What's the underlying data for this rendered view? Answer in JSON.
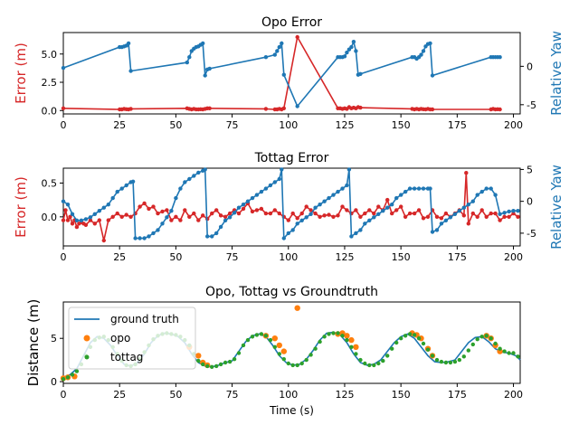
{
  "colors": {
    "error": "#d62728",
    "yaw": "#1f77b4",
    "ground": "#1f77b4",
    "opo": "#ff7f0e",
    "tottag": "#2ca02c"
  },
  "chart_data": [
    {
      "type": "line",
      "title": "Opo Error",
      "xlabel": "",
      "ylabel": "Error (m)",
      "ylabel_right": "Relative Yaw",
      "xlim": [
        0,
        203
      ],
      "ylim": [
        -0.3,
        6.9
      ],
      "ylim_right": [
        -6.2,
        4.4
      ],
      "xticks": [
        0,
        25,
        50,
        75,
        100,
        125,
        150,
        175,
        200
      ],
      "yticks": [
        0.0,
        2.5,
        5.0
      ],
      "ytick_labels": [
        "0.0",
        "2.5",
        "5.0"
      ],
      "yticks_right": [
        -5,
        0
      ],
      "ytick_labels_right": [
        "-5",
        "0"
      ],
      "series": [
        {
          "axis": "left",
          "color": "error",
          "x": [
            0,
            25,
            26,
            27,
            28,
            29,
            30,
            55,
            56,
            57,
            58,
            59,
            60,
            61,
            62,
            63,
            64,
            65,
            90,
            94,
            95,
            96,
            97,
            98,
            104,
            122,
            123,
            124,
            125,
            126,
            127,
            128,
            129,
            130,
            131,
            132,
            155,
            156,
            157,
            158,
            159,
            160,
            161,
            162,
            163,
            164,
            190,
            191,
            192,
            193,
            194
          ],
          "y": [
            0.2,
            0.1,
            0.1,
            0.15,
            0.12,
            0.1,
            0.15,
            0.2,
            0.15,
            0.1,
            0.15,
            0.1,
            0.1,
            0.12,
            0.1,
            0.15,
            0.2,
            0.2,
            0.15,
            0.1,
            0.1,
            0.15,
            0.1,
            0.2,
            6.5,
            0.2,
            0.2,
            0.15,
            0.2,
            0.15,
            0.3,
            0.2,
            0.25,
            0.2,
            0.3,
            0.25,
            0.15,
            0.1,
            0.15,
            0.1,
            0.15,
            0.12,
            0.1,
            0.15,
            0.1,
            0.1,
            0.1,
            0.15,
            0.1,
            0.12,
            0.1
          ]
        },
        {
          "axis": "right",
          "color": "yaw",
          "x": [
            0,
            25,
            26,
            27,
            28,
            29,
            30,
            55,
            56,
            57,
            58,
            59,
            60,
            61,
            62,
            63,
            64,
            65,
            90,
            94,
            95,
            96,
            97,
            98,
            104,
            122,
            123,
            124,
            125,
            126,
            127,
            128,
            129,
            130,
            131,
            132,
            155,
            156,
            157,
            158,
            159,
            160,
            161,
            162,
            163,
            164,
            190,
            191,
            192,
            193,
            194
          ],
          "y": [
            -0.2,
            2.5,
            2.5,
            2.6,
            2.7,
            3.0,
            -0.6,
            0.5,
            1.2,
            2.0,
            2.3,
            2.5,
            2.6,
            2.8,
            3.0,
            -1.2,
            -0.4,
            -0.3,
            1.2,
            1.5,
            2.0,
            2.5,
            3.0,
            -1.1,
            -5.2,
            1.2,
            1.2,
            1.2,
            1.3,
            1.8,
            2.2,
            2.5,
            3.2,
            2.0,
            -1.1,
            -1.0,
            1.2,
            1.2,
            1.0,
            1.2,
            1.5,
            2.0,
            2.6,
            2.9,
            3.0,
            -1.2,
            1.2,
            1.2,
            1.2,
            1.2,
            1.2
          ]
        }
      ]
    },
    {
      "type": "line",
      "title": "Tottag Error",
      "xlabel": "",
      "ylabel": "Error (m)",
      "ylabel_right": "Relative Yaw",
      "xlim": [
        0,
        203
      ],
      "ylim": [
        -0.43,
        0.72
      ],
      "ylim_right": [
        -7.0,
        5.2
      ],
      "xticks": [
        0,
        25,
        50,
        75,
        100,
        125,
        150,
        175,
        200
      ],
      "yticks": [
        0.0,
        0.5
      ],
      "ytick_labels": [
        "0.0",
        "0.5"
      ],
      "yticks_right": [
        -5,
        0,
        5
      ],
      "ytick_labels_right": [
        "-5",
        "0",
        "5"
      ],
      "series": [
        {
          "axis": "left",
          "color": "error",
          "x": [
            0,
            1,
            2,
            3,
            4,
            5,
            6,
            7,
            8,
            9,
            10,
            12,
            14,
            16,
            18,
            20,
            22,
            24,
            26,
            28,
            30,
            32,
            34,
            36,
            38,
            40,
            42,
            44,
            46,
            48,
            50,
            52,
            54,
            56,
            58,
            60,
            62,
            64,
            66,
            68,
            70,
            72,
            74,
            76,
            78,
            80,
            82,
            84,
            86,
            88,
            90,
            92,
            94,
            96,
            98,
            100,
            102,
            104,
            106,
            108,
            110,
            112,
            114,
            116,
            118,
            120,
            122,
            124,
            126,
            128,
            130,
            132,
            134,
            136,
            138,
            140,
            142,
            144,
            146,
            148,
            150,
            152,
            154,
            156,
            158,
            160,
            162,
            164,
            166,
            168,
            170,
            172,
            174,
            176,
            178,
            179,
            180,
            182,
            184,
            186,
            188,
            190,
            192,
            194,
            196,
            198,
            200,
            202
          ],
          "y": [
            -0.05,
            0.1,
            -0.05,
            0.0,
            -0.1,
            -0.05,
            -0.15,
            -0.1,
            -0.08,
            -0.1,
            -0.12,
            -0.05,
            -0.1,
            -0.05,
            -0.35,
            -0.05,
            0.0,
            0.05,
            0.0,
            0.03,
            0.0,
            0.05,
            0.15,
            0.2,
            0.12,
            0.15,
            0.05,
            0.08,
            0.1,
            -0.05,
            0.0,
            -0.05,
            0.1,
            0.0,
            0.05,
            -0.05,
            0.02,
            -0.03,
            0.05,
            0.1,
            0.02,
            0.0,
            0.05,
            0.1,
            0.05,
            0.12,
            0.2,
            0.08,
            0.1,
            0.12,
            0.05,
            0.05,
            0.1,
            0.05,
            0.0,
            -0.05,
            0.05,
            -0.02,
            0.05,
            0.15,
            0.1,
            0.05,
            0.0,
            0.02,
            0.03,
            0.0,
            0.02,
            0.15,
            0.1,
            0.05,
            0.1,
            0.0,
            0.05,
            0.1,
            0.05,
            0.15,
            0.1,
            0.25,
            0.05,
            0.1,
            0.15,
            0.0,
            0.05,
            0.05,
            0.1,
            -0.02,
            0.0,
            0.1,
            0.0,
            -0.02,
            0.05,
            0.0,
            0.05,
            0.1,
            0.02,
            0.65,
            -0.1,
            0.05,
            0.0,
            0.1,
            0.0,
            0.05,
            0.05,
            -0.05,
            0.0,
            0.0,
            0.05,
            0.0
          ]
        },
        {
          "axis": "right",
          "color": "yaw",
          "x": [
            0,
            2,
            4,
            6,
            8,
            10,
            12,
            14,
            16,
            18,
            20,
            22,
            24,
            26,
            28,
            30,
            31,
            32,
            34,
            36,
            38,
            40,
            42,
            44,
            46,
            48,
            50,
            52,
            54,
            56,
            58,
            60,
            62,
            63,
            64,
            66,
            68,
            70,
            72,
            74,
            76,
            78,
            80,
            82,
            84,
            86,
            88,
            90,
            92,
            94,
            96,
            97,
            98,
            100,
            102,
            104,
            106,
            108,
            110,
            112,
            114,
            116,
            118,
            120,
            122,
            124,
            126,
            127,
            128,
            130,
            132,
            134,
            136,
            138,
            140,
            142,
            144,
            146,
            148,
            150,
            152,
            154,
            156,
            158,
            160,
            162,
            163,
            164,
            166,
            168,
            170,
            172,
            174,
            176,
            178,
            180,
            182,
            184,
            186,
            188,
            190,
            192,
            194,
            196,
            198,
            200,
            202
          ],
          "y": [
            0.0,
            -0.5,
            -2.0,
            -3.0,
            -3.0,
            -2.8,
            -2.5,
            -2.0,
            -1.5,
            -1.0,
            -0.5,
            0.5,
            1.5,
            2.0,
            2.5,
            3.0,
            3.1,
            -5.8,
            -5.8,
            -5.8,
            -5.5,
            -5.0,
            -4.5,
            -3.5,
            -2.5,
            -1.5,
            0.5,
            2.0,
            3.0,
            3.5,
            4.0,
            4.5,
            4.8,
            5.0,
            -5.5,
            -5.5,
            -5.0,
            -4.0,
            -3.0,
            -2.5,
            -1.8,
            -1.0,
            -0.5,
            0.0,
            0.5,
            1.0,
            1.5,
            2.0,
            2.5,
            3.0,
            3.5,
            5.0,
            -5.8,
            -5.0,
            -4.5,
            -3.5,
            -3.0,
            -2.5,
            -2.0,
            -1.0,
            -0.5,
            0.0,
            0.5,
            1.0,
            1.5,
            2.0,
            2.5,
            5.0,
            -5.5,
            -5.0,
            -4.5,
            -3.5,
            -3.0,
            -2.5,
            -2.0,
            -1.5,
            -1.0,
            -0.5,
            0.5,
            1.0,
            1.5,
            2.0,
            2.0,
            2.0,
            2.0,
            2.0,
            2.0,
            -4.8,
            -4.5,
            -3.5,
            -3.0,
            -2.5,
            -2.0,
            -1.5,
            -1.0,
            -0.5,
            0.0,
            1.0,
            1.5,
            2.0,
            2.0,
            1.0,
            -2.0,
            -1.8,
            -1.6,
            -1.5,
            -1.5
          ]
        }
      ]
    },
    {
      "type": "scatter",
      "title": "Opo, Tottag vs Groundtruth",
      "xlabel": "Time (s)",
      "ylabel": "Distance (m)",
      "xlim": [
        0,
        203
      ],
      "ylim": [
        -0.2,
        9.2
      ],
      "xticks": [
        0,
        25,
        50,
        75,
        100,
        125,
        150,
        175,
        200
      ],
      "yticks": [
        0,
        5
      ],
      "ytick_labels": [
        "0",
        "5"
      ],
      "legend": {
        "position": "upper-left",
        "entries": [
          {
            "label": "ground truth",
            "color": "ground",
            "kind": "line"
          },
          {
            "label": "opo",
            "color": "opo",
            "kind": "dot-large"
          },
          {
            "label": "tottag",
            "color": "tottag",
            "kind": "dot-small"
          }
        ]
      },
      "ground_truth": {
        "x": [
          0,
          3,
          6,
          9,
          12,
          15,
          18,
          21,
          24,
          27,
          30,
          33,
          36,
          39,
          42,
          45,
          48,
          51,
          54,
          57,
          60,
          63,
          66,
          69,
          72,
          75,
          78,
          81,
          84,
          87,
          90,
          93,
          96,
          99,
          102,
          105,
          108,
          111,
          114,
          117,
          120,
          123,
          126,
          129,
          132,
          135,
          138,
          141,
          144,
          147,
          150,
          153,
          156,
          159,
          162,
          165,
          168,
          171,
          174,
          177,
          180,
          183,
          186,
          189,
          192,
          195,
          198,
          201,
          203
        ],
        "y": [
          0.5,
          0.8,
          1.5,
          3.0,
          4.5,
          5.2,
          5.0,
          4.2,
          3.0,
          2.0,
          1.8,
          2.2,
          3.2,
          4.5,
          5.3,
          5.6,
          5.5,
          5.2,
          4.5,
          3.2,
          2.2,
          1.8,
          1.7,
          1.9,
          2.2,
          2.4,
          3.5,
          4.6,
          5.3,
          5.5,
          5.2,
          4.2,
          3.0,
          2.2,
          1.9,
          2.0,
          2.6,
          3.6,
          4.8,
          5.6,
          5.7,
          5.4,
          4.5,
          3.2,
          2.2,
          1.9,
          2.0,
          2.5,
          3.5,
          4.5,
          5.2,
          5.5,
          5.0,
          4.0,
          3.0,
          2.3,
          2.2,
          2.3,
          2.5,
          3.5,
          4.5,
          5.1,
          5.2,
          4.6,
          3.8,
          3.4,
          3.3,
          3.0,
          2.5
        ]
      },
      "opo": {
        "x": [
          0,
          2,
          5,
          104,
          56,
          60,
          62,
          64,
          90,
          94,
          96,
          98,
          122,
          124,
          126,
          128,
          130,
          155,
          157,
          159,
          162,
          164,
          188,
          190,
          192,
          194
        ],
        "y": [
          0.4,
          0.5,
          0.6,
          8.5,
          4.0,
          3.0,
          2.2,
          1.9,
          5.3,
          5.0,
          4.2,
          3.5,
          5.5,
          5.6,
          5.3,
          4.8,
          4.0,
          5.6,
          5.4,
          5.0,
          3.8,
          3.0,
          5.3,
          5.0,
          4.2,
          3.5
        ]
      },
      "tottag": {
        "x": [
          0,
          2,
          4,
          6,
          8,
          10,
          12,
          14,
          16,
          18,
          20,
          22,
          24,
          26,
          28,
          30,
          32,
          34,
          36,
          38,
          40,
          42,
          44,
          46,
          48,
          50,
          52,
          54,
          56,
          58,
          60,
          62,
          64,
          66,
          68,
          70,
          72,
          74,
          76,
          78,
          80,
          82,
          84,
          86,
          88,
          90,
          92,
          94,
          96,
          98,
          100,
          102,
          104,
          106,
          108,
          110,
          112,
          114,
          116,
          118,
          120,
          122,
          124,
          126,
          128,
          130,
          132,
          134,
          136,
          138,
          140,
          142,
          144,
          146,
          148,
          150,
          152,
          154,
          156,
          158,
          160,
          162,
          164,
          166,
          168,
          170,
          172,
          174,
          176,
          178,
          180,
          182,
          184,
          186,
          188,
          190,
          192,
          194,
          196,
          198,
          200,
          202
        ],
        "y": [
          0.3,
          0.5,
          0.8,
          1.2,
          2.0,
          3.0,
          4.0,
          4.8,
          5.1,
          5.2,
          4.8,
          4.0,
          3.2,
          2.4,
          1.9,
          1.8,
          2.0,
          2.6,
          3.4,
          4.2,
          4.9,
          5.3,
          5.5,
          5.6,
          5.5,
          5.4,
          5.2,
          4.8,
          4.2,
          3.2,
          2.4,
          2.0,
          1.8,
          1.7,
          1.8,
          2.0,
          2.2,
          2.3,
          2.6,
          3.3,
          4.2,
          4.8,
          5.2,
          5.4,
          5.5,
          5.3,
          4.8,
          4.0,
          3.2,
          2.6,
          2.1,
          1.9,
          1.9,
          2.1,
          2.5,
          3.1,
          3.8,
          4.6,
          5.2,
          5.5,
          5.6,
          5.6,
          5.3,
          4.8,
          4.0,
          3.2,
          2.5,
          2.1,
          1.9,
          1.9,
          2.1,
          2.4,
          3.0,
          3.8,
          4.5,
          5.0,
          5.3,
          5.5,
          5.4,
          5.0,
          4.4,
          3.7,
          3.0,
          2.5,
          2.3,
          2.2,
          2.2,
          2.3,
          2.5,
          2.9,
          3.6,
          4.3,
          4.9,
          5.2,
          5.3,
          5.0,
          4.4,
          3.8,
          3.5,
          3.3,
          3.3,
          2.9
        ]
      }
    }
  ]
}
